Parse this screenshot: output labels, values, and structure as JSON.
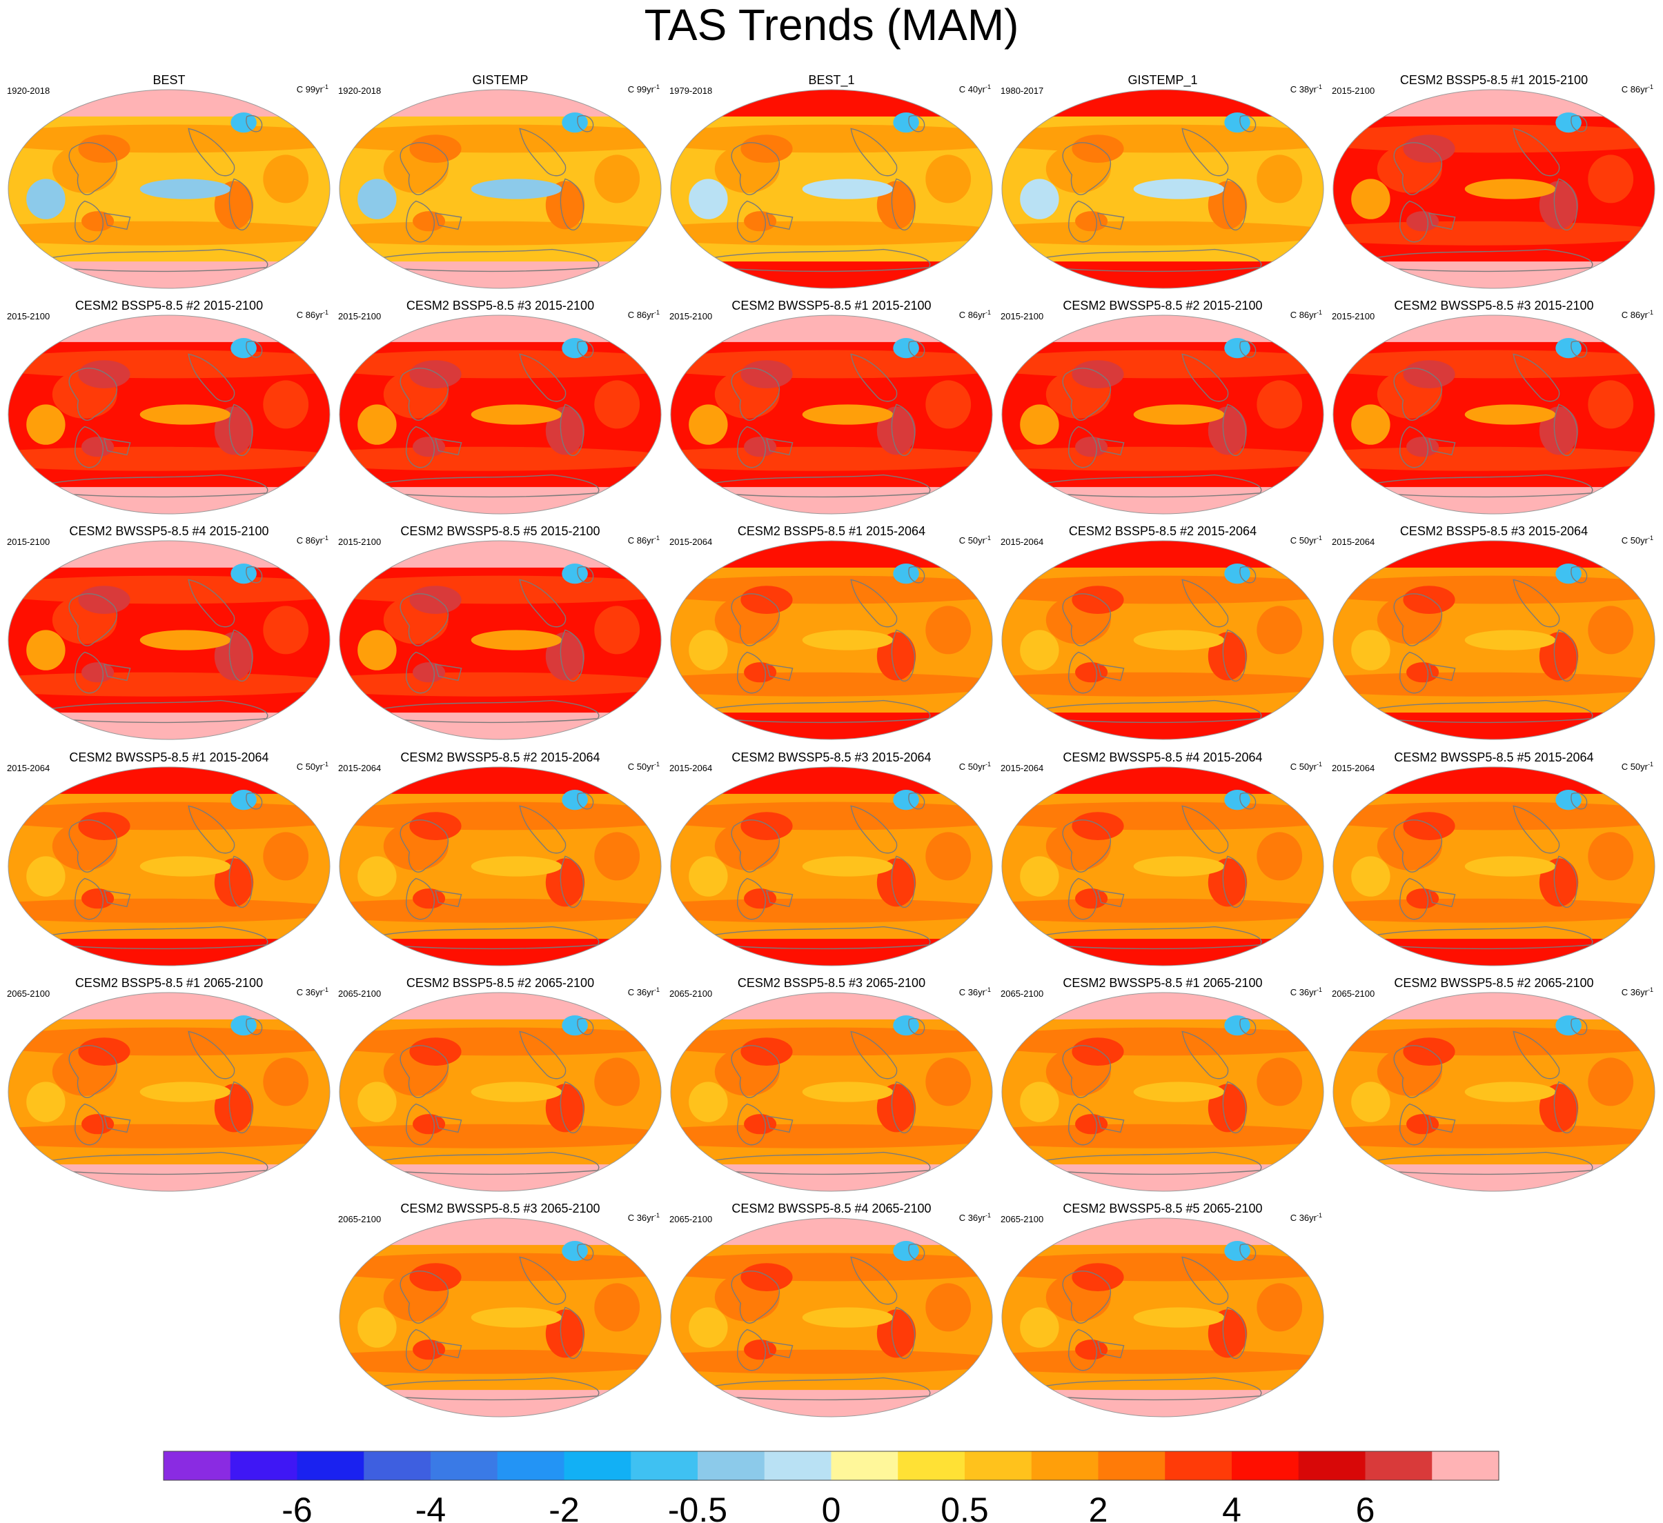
{
  "title": "TAS Trends (MAM)",
  "chart_data": {
    "type": "map-panel-grid",
    "variable": "TAS",
    "season": "MAM",
    "colorbar": {
      "tick_labels": [
        "-6",
        "-4",
        "-2",
        "-0.5",
        "0",
        "0.5",
        "2",
        "4",
        "6"
      ],
      "tick_boundary_index": [
        2,
        4,
        6,
        8,
        10,
        12,
        14,
        16,
        18
      ],
      "colors": [
        "#8a2be2",
        "#3f17f5",
        "#1a22f0",
        "#3e5fe0",
        "#3a7ae6",
        "#2394f5",
        "#12b0f5",
        "#3fc1f2",
        "#8ccaea",
        "#b9e1f4",
        "#fff79a",
        "#ffe135",
        "#ffc21c",
        "#ff9f0a",
        "#ff7b08",
        "#ff3b08",
        "#ff0f00",
        "#d80808",
        "#d93a3a",
        "#ffb3b5"
      ]
    },
    "panels": [
      {
        "title": "BEST",
        "period": "1920-2018",
        "units": "C 99yr",
        "scheme": "obs"
      },
      {
        "title": "GISTEMP",
        "period": "1920-2018",
        "units": "C 99yr",
        "scheme": "obs"
      },
      {
        "title": "BEST_1",
        "period": "1979-2018",
        "units": "C 40yr",
        "scheme": "obs2"
      },
      {
        "title": "GISTEMP_1",
        "period": "1980-2017",
        "units": "C 38yr",
        "scheme": "obs2"
      },
      {
        "title": "CESM2 BSSP5-8.5 #1 2015-2100",
        "period": "2015-2100",
        "units": "C 86yr",
        "scheme": "hot"
      },
      {
        "title": "CESM2 BSSP5-8.5 #2 2015-2100",
        "period": "2015-2100",
        "units": "C 86yr",
        "scheme": "hot"
      },
      {
        "title": "CESM2 BSSP5-8.5 #3 2015-2100",
        "period": "2015-2100",
        "units": "C 86yr",
        "scheme": "hot"
      },
      {
        "title": "CESM2 BWSSP5-8.5 #1 2015-2100",
        "period": "2015-2100",
        "units": "C 86yr",
        "scheme": "hot"
      },
      {
        "title": "CESM2 BWSSP5-8.5 #2 2015-2100",
        "period": "2015-2100",
        "units": "C 86yr",
        "scheme": "hot"
      },
      {
        "title": "CESM2 BWSSP5-8.5 #3 2015-2100",
        "period": "2015-2100",
        "units": "C 86yr",
        "scheme": "hot"
      },
      {
        "title": "CESM2 BWSSP5-8.5 #4 2015-2100",
        "period": "2015-2100",
        "units": "C 86yr",
        "scheme": "hot"
      },
      {
        "title": "CESM2 BWSSP5-8.5 #5 2015-2100",
        "period": "2015-2100",
        "units": "C 86yr",
        "scheme": "hot"
      },
      {
        "title": "CESM2 BSSP5-8.5 #1 2015-2064",
        "period": "2015-2064",
        "units": "C 50yr",
        "scheme": "mid"
      },
      {
        "title": "CESM2 BSSP5-8.5 #2 2015-2064",
        "period": "2015-2064",
        "units": "C 50yr",
        "scheme": "mid"
      },
      {
        "title": "CESM2 BSSP5-8.5 #3 2015-2064",
        "period": "2015-2064",
        "units": "C 50yr",
        "scheme": "mid"
      },
      {
        "title": "CESM2 BWSSP5-8.5 #1 2015-2064",
        "period": "2015-2064",
        "units": "C 50yr",
        "scheme": "mid"
      },
      {
        "title": "CESM2 BWSSP5-8.5 #2 2015-2064",
        "period": "2015-2064",
        "units": "C 50yr",
        "scheme": "mid"
      },
      {
        "title": "CESM2 BWSSP5-8.5 #3 2015-2064",
        "period": "2015-2064",
        "units": "C 50yr",
        "scheme": "mid"
      },
      {
        "title": "CESM2 BWSSP5-8.5 #4 2015-2064",
        "period": "2015-2064",
        "units": "C 50yr",
        "scheme": "mid"
      },
      {
        "title": "CESM2 BWSSP5-8.5 #5 2015-2064",
        "period": "2015-2064",
        "units": "C 50yr",
        "scheme": "mid"
      },
      {
        "title": "CESM2 BSSP5-8.5 #1 2065-2100",
        "period": "2065-2100",
        "units": "C 36yr",
        "scheme": "late"
      },
      {
        "title": "CESM2 BSSP5-8.5 #2 2065-2100",
        "period": "2065-2100",
        "units": "C 36yr",
        "scheme": "late"
      },
      {
        "title": "CESM2 BSSP5-8.5 #3 2065-2100",
        "period": "2065-2100",
        "units": "C 36yr",
        "scheme": "late"
      },
      {
        "title": "CESM2 BWSSP5-8.5 #1 2065-2100",
        "period": "2065-2100",
        "units": "C 36yr",
        "scheme": "late"
      },
      {
        "title": "CESM2 BWSSP5-8.5 #2 2065-2100",
        "period": "2065-2100",
        "units": "C 36yr",
        "scheme": "late"
      },
      {
        "title": "CESM2 BWSSP5-8.5 #3 2065-2100",
        "period": "2065-2100",
        "units": "C 36yr",
        "scheme": "late"
      },
      {
        "title": "CESM2 BWSSP5-8.5 #4 2065-2100",
        "period": "2065-2100",
        "units": "C 36yr",
        "scheme": "late"
      },
      {
        "title": "CESM2 BWSSP5-8.5 #5 2065-2100",
        "period": "2065-2100",
        "units": "C 36yr",
        "scheme": "late"
      }
    ],
    "schemes": {
      "obs": {
        "base": "#ffc21c",
        "warm": "#ff9f0a",
        "hot": "#ff7b08",
        "polar": "#ffb3b5",
        "cool": "#8ccaea",
        "cold": "#3fc1f2"
      },
      "obs2": {
        "base": "#ffc21c",
        "warm": "#ff9f0a",
        "hot": "#ff7b08",
        "polar": "#ff0f00",
        "cool": "#b9e1f4",
        "cold": "#3fc1f2"
      },
      "hot": {
        "base": "#ff0f00",
        "warm": "#ff3b08",
        "hot": "#d93a3a",
        "polar": "#ffb3b5",
        "cool": "#ff9f0a",
        "cold": "#3fc1f2"
      },
      "mid": {
        "base": "#ff9f0a",
        "warm": "#ff7b08",
        "hot": "#ff3b08",
        "polar": "#ff0f00",
        "cool": "#ffc21c",
        "cold": "#3fc1f2"
      },
      "late": {
        "base": "#ff9f0a",
        "warm": "#ff7b08",
        "hot": "#ff3b08",
        "polar": "#ffb3b5",
        "cool": "#ffc21c",
        "cold": "#3fc1f2"
      }
    }
  }
}
